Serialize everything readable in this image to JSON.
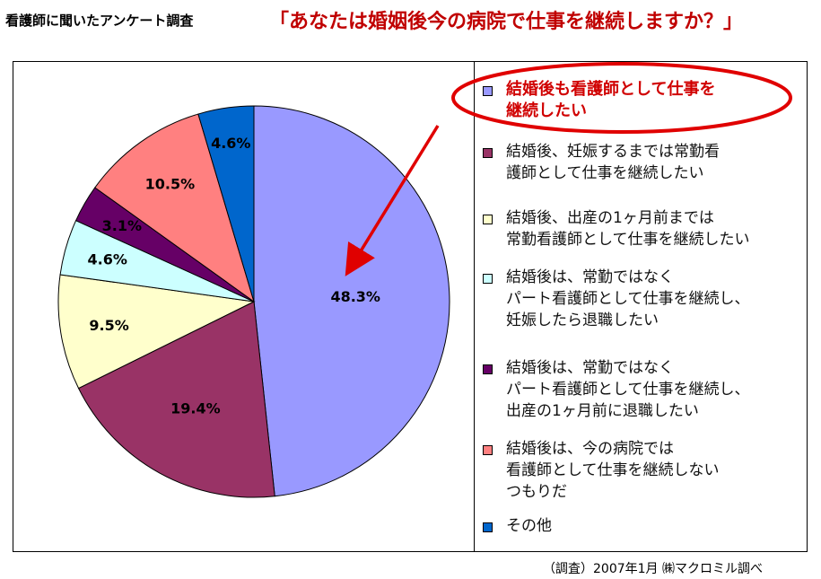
{
  "header": {
    "survey_label": "看護師に聞いたアンケート調査",
    "title": "「あなたは婚姻後今の病院で仕事を継続しますか？」"
  },
  "footer": {
    "source": "（調査）2007年1月 ㈱マクロミル調べ"
  },
  "chart_data": {
    "type": "pie",
    "title": "「あなたは婚姻後今の病院で仕事を継続しますか？」",
    "legend_placement": "right",
    "series": [
      {
        "name": "結婚後も看護師として仕事を継続したい",
        "legend_text": "結婚後も看護師として仕事を\n継続したい",
        "value": 48.3,
        "label": "48.3%",
        "color": "#9999ff",
        "label_color": "#000000"
      },
      {
        "name": "結婚後、妊娠するまでは常勤看護師として仕事を継続したい",
        "legend_text": "結婚後、妊娠するまでは常勤看\n護師として仕事を継続したい",
        "value": 19.4,
        "label": "19.4%",
        "color": "#993366",
        "label_color": "#000000"
      },
      {
        "name": "結婚後、出産の1ヶ月前までは常勤看護師として仕事を継続したい",
        "legend_text": "結婚後、出産の1ヶ月前までは\n常勤看護師として仕事を継続したい",
        "value": 9.5,
        "label": "9.5%",
        "color": "#ffffcc",
        "label_color": "#000000"
      },
      {
        "name": "結婚後は、常勤ではなくパート看護師として仕事を継続し、妊娠したら退職したい",
        "legend_text": "結婚後は、常勤ではなく\nパート看護師として仕事を継続し、\n妊娠したら退職したい",
        "value": 4.6,
        "label": "4.6%",
        "color": "#ccffff",
        "label_color": "#000000"
      },
      {
        "name": "結婚後は、常勤ではなくパート看護師として仕事を継続し、出産の1ヶ月前に退職したい",
        "legend_text": "結婚後は、常勤ではなく\nパート看護師として仕事を継続し、\n出産の1ヶ月前に退職したい",
        "value": 3.1,
        "label": "3.1%",
        "color": "#660066",
        "label_color": "#000000"
      },
      {
        "name": "結婚後は、今の病院では看護師として仕事を継続しないつもりだ",
        "legend_text": "結婚後は、今の病院では\n看護師として仕事を継続しない\nつもりだ",
        "value": 10.5,
        "label": "10.5%",
        "color": "#ff8080",
        "label_color": "#000000"
      },
      {
        "name": "その他",
        "legend_text": "その他",
        "value": 4.6,
        "label": "4.6%",
        "color": "#0066cc",
        "label_color": "#000000"
      }
    ],
    "highlight": {
      "series_index": 0,
      "ellipse_color": "#e00000",
      "arrow_color": "#e00000"
    }
  }
}
